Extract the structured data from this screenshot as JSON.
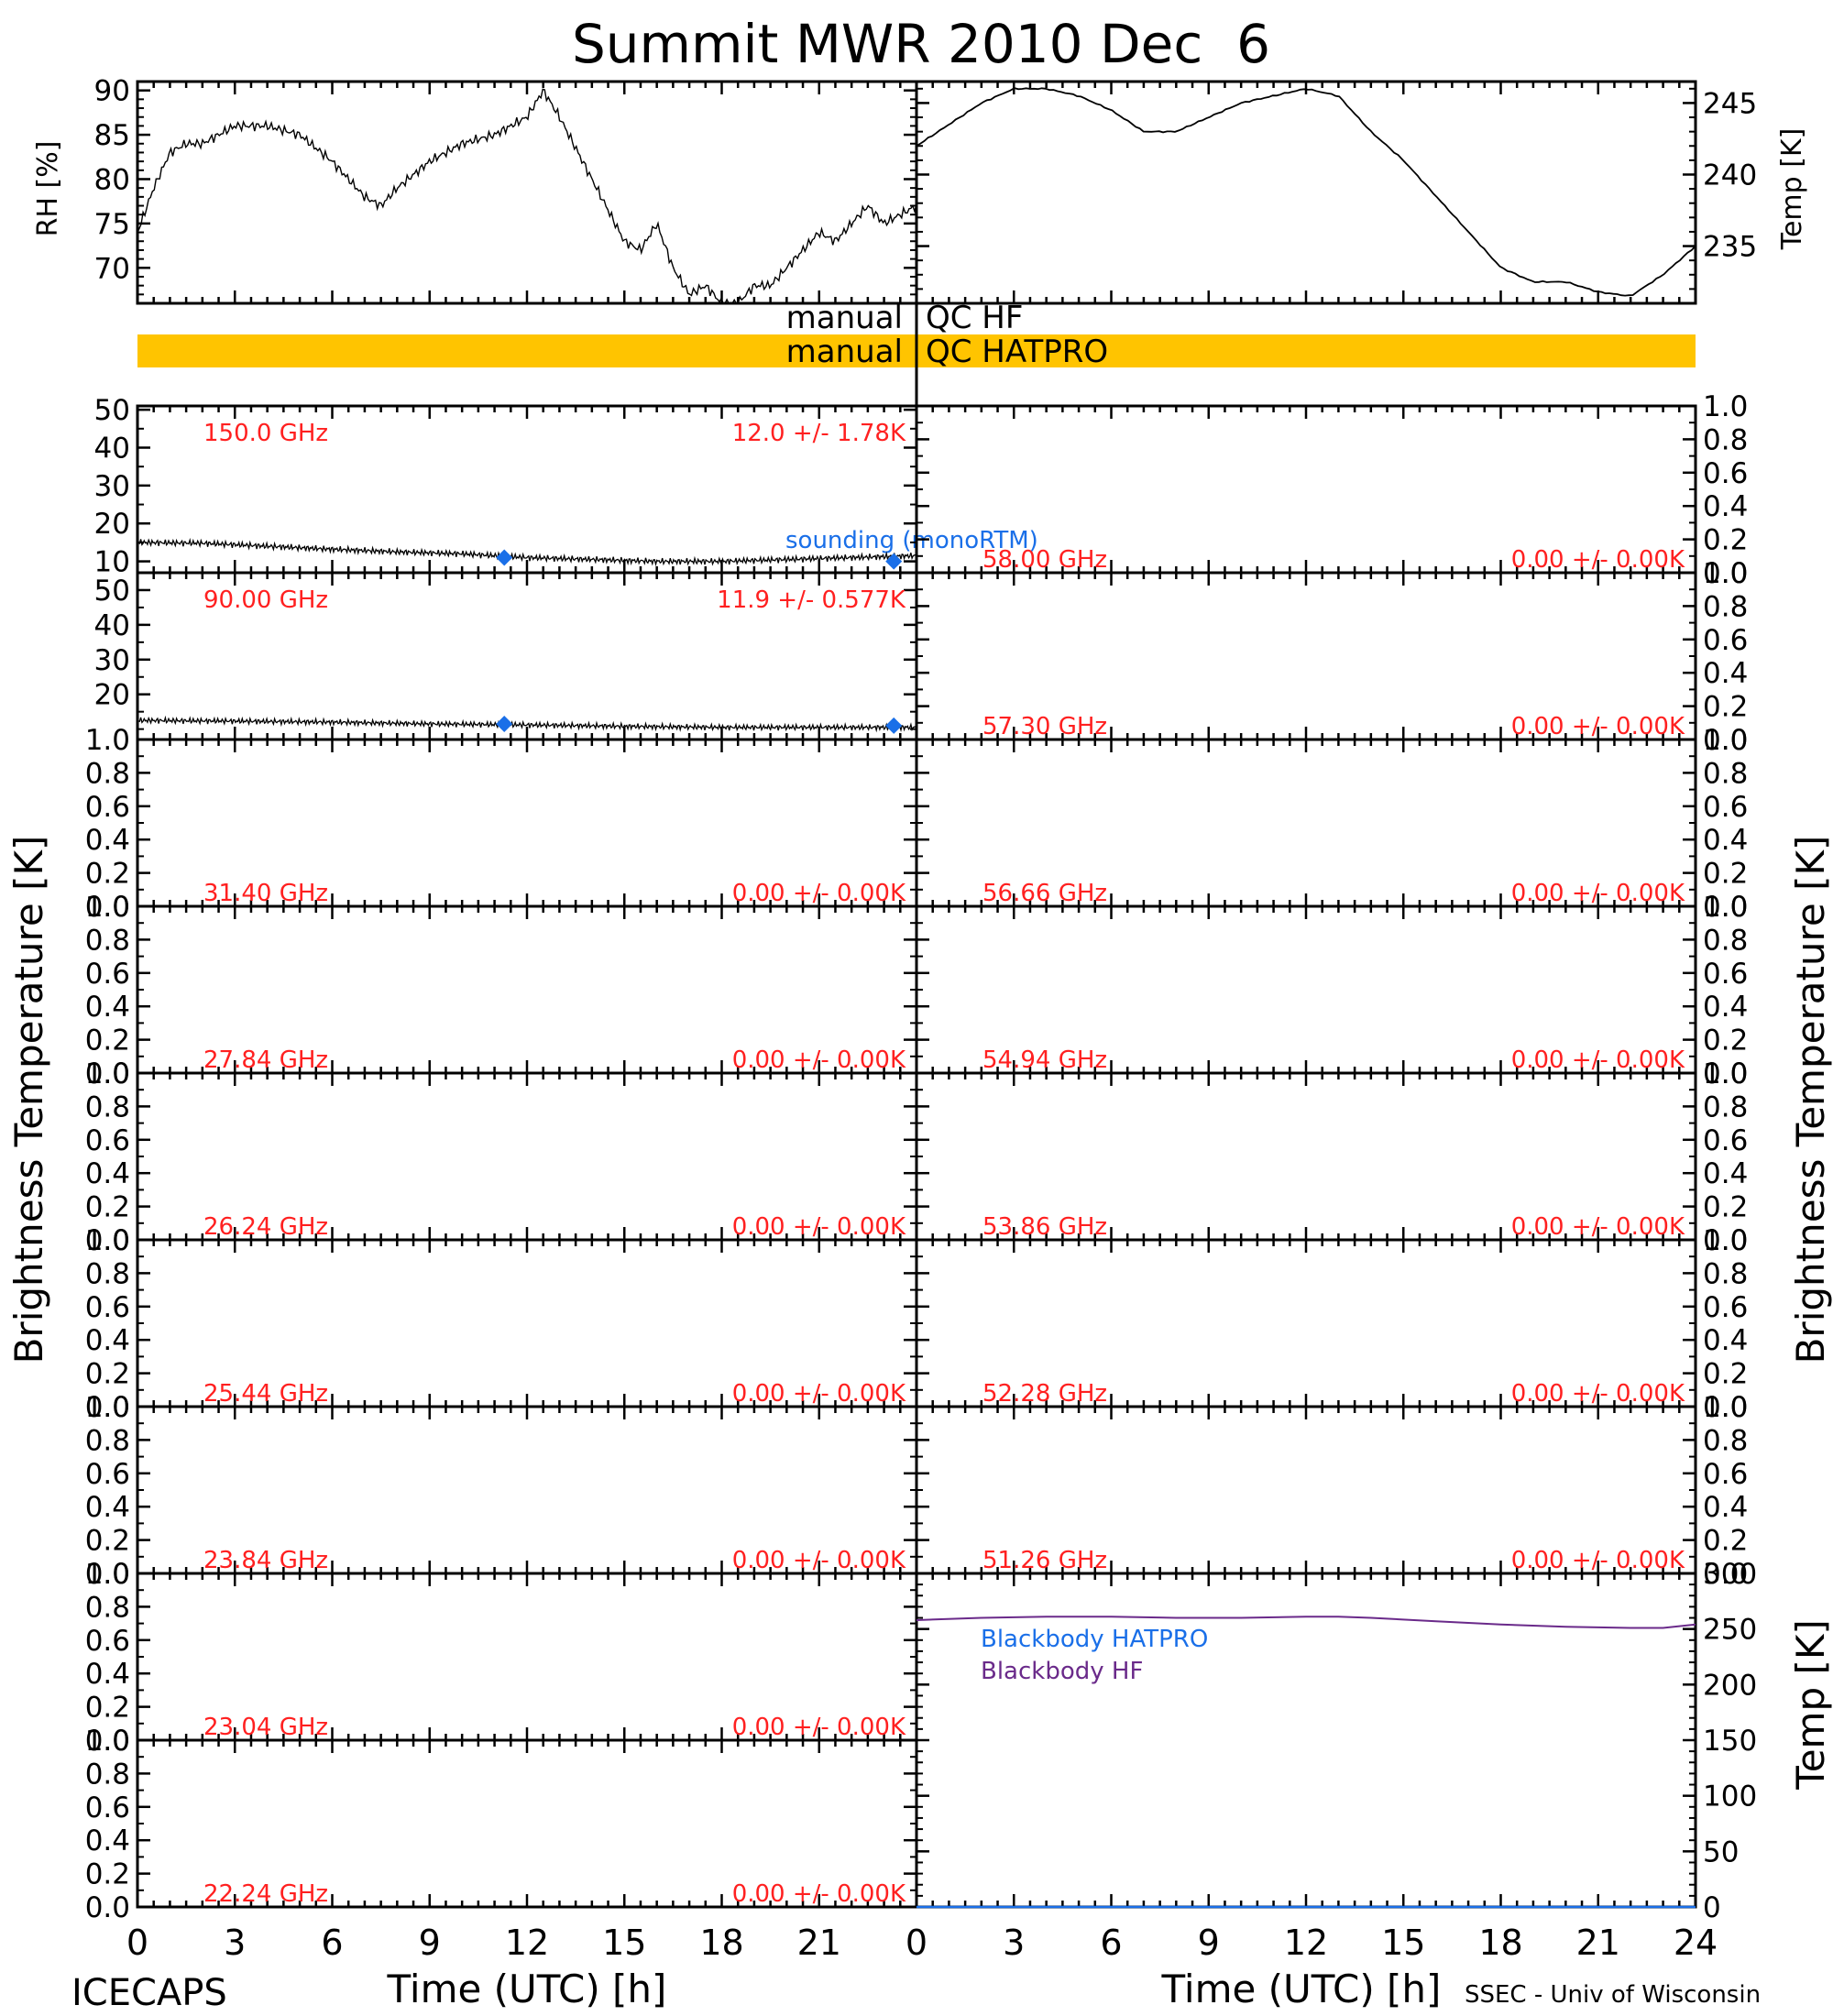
{
  "title": "Summit MWR 2010 Dec  6",
  "footer": {
    "left": "ICECAPS",
    "right": "SSEC - Univ of Wisconsin"
  },
  "xlabel": "Time (UTC) [h]",
  "xticks": [
    "0",
    "3",
    "6",
    "9",
    "12",
    "15",
    "18",
    "21",
    "24"
  ],
  "colors": {
    "qc_bar": "#ffc400",
    "channel_text": "#ff2020",
    "sounding": "#1a6fe8",
    "blackbody_hf": "#6a2a8a",
    "trace": "#000000"
  },
  "qc": {
    "hf": "manual QC HF",
    "hf_left": "manual",
    "hf_right": "QC HF",
    "hatpro_left": "manual",
    "hatpro_right": "QC HATPRO"
  },
  "labels": {
    "rh": "RH [%]",
    "temp_k": "Temp [K]",
    "tb_left": "Brightness Temperature [K]",
    "tb_right": "Brightness Temperature [K]",
    "temp_bb": "Temp [K]"
  },
  "annotations": {
    "sounding": "sounding (monoRTM)",
    "bb_hatpro": "Blackbody HATPRO",
    "bb_hf": "Blackbody HF"
  },
  "chart_data": [
    {
      "type": "line",
      "name": "rh",
      "ylabel": "RH [%]",
      "xlim": [
        0,
        24
      ],
      "ylim": [
        66,
        91
      ],
      "yticks": [
        70,
        75,
        80,
        85,
        90
      ],
      "x": [
        0,
        0.5,
        1,
        1.5,
        2,
        3,
        4,
        5,
        6,
        7,
        7.5,
        8,
        9,
        10,
        11,
        12,
        12.5,
        13,
        14,
        15,
        15.5,
        16,
        16.5,
        17,
        17.5,
        18,
        18.5,
        19,
        19.5,
        20,
        20.5,
        21,
        21.5,
        22,
        22.5,
        23,
        23.5,
        24
      ],
      "y": [
        74,
        79,
        83,
        84,
        84,
        86,
        86,
        85,
        82,
        78,
        77,
        79,
        82,
        84,
        85,
        87,
        90,
        87,
        80,
        73,
        72,
        75,
        70,
        67,
        68,
        66,
        66,
        68,
        68,
        70,
        72,
        74,
        73,
        75,
        77,
        75,
        76,
        77
      ]
    },
    {
      "type": "line",
      "name": "temp",
      "ylabel": "Temp [K]",
      "xlim": [
        0,
        24
      ],
      "ylim": [
        231,
        246.5
      ],
      "yticks": [
        235,
        240,
        245
      ],
      "x": [
        0,
        1,
        2,
        3,
        4,
        5,
        6,
        7,
        8,
        9,
        10,
        11,
        12,
        13,
        14,
        15,
        16,
        17,
        18,
        19,
        20,
        21,
        22,
        23,
        24
      ],
      "y": [
        242,
        243.5,
        245,
        246,
        246,
        245.5,
        244.5,
        243,
        243,
        244,
        245,
        245.5,
        246,
        245.5,
        243,
        241,
        238.5,
        236,
        233.5,
        232.5,
        232.5,
        231.8,
        231.5,
        233,
        235
      ]
    },
    {
      "type": "line",
      "name": "ch150",
      "freq": "150.0 GHz",
      "stat": "12.0 +/-  1.78K",
      "xlim": [
        0,
        24
      ],
      "ylim": [
        7,
        51
      ],
      "yticks": [
        10,
        20,
        30,
        40,
        50
      ],
      "x": [
        0,
        2,
        4,
        6,
        8,
        10,
        12,
        14,
        16,
        18,
        20,
        22,
        24
      ],
      "y": [
        15,
        14.8,
        14,
        13.2,
        12.5,
        12,
        11,
        10.5,
        10,
        10,
        10.5,
        11,
        11.5
      ],
      "sounding": {
        "x": [
          11.3,
          23.3
        ],
        "y": [
          11,
          10
        ]
      }
    },
    {
      "type": "line",
      "name": "ch90",
      "freq": "90.00 GHz",
      "stat": "11.9 +/- 0.577K",
      "xlim": [
        0,
        24
      ],
      "ylim": [
        7,
        55
      ],
      "yticks": [
        20,
        30,
        40,
        50
      ],
      "x": [
        0,
        3,
        6,
        9,
        12,
        15,
        18,
        21,
        24
      ],
      "y": [
        12.5,
        12.3,
        12,
        11.5,
        11.2,
        10.8,
        10.5,
        10.5,
        10.5
      ],
      "sounding": {
        "x": [
          11.3,
          23.3
        ],
        "y": [
          11.5,
          11
        ]
      }
    },
    {
      "type": "line",
      "name": "empty",
      "freq": "31.40 GHz",
      "stat": "0.00 +/-  0.00K",
      "ylim": [
        0,
        1
      ]
    },
    {
      "type": "line",
      "name": "empty",
      "freq": "27.84 GHz",
      "stat": "0.00 +/-  0.00K",
      "ylim": [
        0,
        1
      ]
    },
    {
      "type": "line",
      "name": "empty",
      "freq": "26.24 GHz",
      "stat": "0.00 +/-  0.00K",
      "ylim": [
        0,
        1
      ]
    },
    {
      "type": "line",
      "name": "empty",
      "freq": "25.44 GHz",
      "stat": "0.00 +/-  0.00K",
      "ylim": [
        0,
        1
      ]
    },
    {
      "type": "line",
      "name": "empty",
      "freq": "23.84 GHz",
      "stat": "0.00 +/-  0.00K",
      "ylim": [
        0,
        1
      ]
    },
    {
      "type": "line",
      "name": "empty",
      "freq": "23.04 GHz",
      "stat": "0.00 +/-  0.00K",
      "ylim": [
        0,
        1
      ]
    },
    {
      "type": "line",
      "name": "empty",
      "freq": "22.24 GHz",
      "stat": "0.00 +/-  0.00K",
      "ylim": [
        0,
        1
      ]
    },
    {
      "type": "line",
      "name": "empty",
      "freq": "58.00 GHz",
      "stat": "0.00 +/-  0.00K",
      "ylim": [
        0,
        1
      ]
    },
    {
      "type": "line",
      "name": "empty",
      "freq": "57.30 GHz",
      "stat": "0.00 +/-  0.00K",
      "ylim": [
        0,
        1
      ]
    },
    {
      "type": "line",
      "name": "empty",
      "freq": "56.66 GHz",
      "stat": "0.00 +/-  0.00K",
      "ylim": [
        0,
        1
      ]
    },
    {
      "type": "line",
      "name": "empty",
      "freq": "54.94 GHz",
      "stat": "0.00 +/-  0.00K",
      "ylim": [
        0,
        1
      ]
    },
    {
      "type": "line",
      "name": "empty",
      "freq": "53.86 GHz",
      "stat": "0.00 +/-  0.00K",
      "ylim": [
        0,
        1
      ]
    },
    {
      "type": "line",
      "name": "empty",
      "freq": "52.28 GHz",
      "stat": "0.00 +/-  0.00K",
      "ylim": [
        0,
        1
      ]
    },
    {
      "type": "line",
      "name": "empty",
      "freq": "51.26 GHz",
      "stat": "0.00 +/-  0.00K",
      "ylim": [
        0,
        1
      ]
    },
    {
      "type": "line",
      "name": "blackbody",
      "ylabel": "Temp [K]",
      "xlim": [
        0,
        24
      ],
      "ylim": [
        0,
        300
      ],
      "yticks": [
        0,
        50,
        100,
        150,
        200,
        250,
        300
      ],
      "series": [
        {
          "name": "Blackbody HF",
          "x": [
            0,
            2,
            4,
            6,
            8,
            10,
            12,
            13,
            14,
            16,
            18,
            20,
            22,
            23,
            24
          ],
          "y": [
            258,
            260,
            261,
            261,
            260,
            260,
            261,
            261,
            260,
            257,
            254,
            252,
            251,
            251,
            254
          ]
        },
        {
          "name": "Blackbody HATPRO",
          "x": [
            0,
            24
          ],
          "y": [
            0,
            0
          ]
        }
      ]
    }
  ],
  "yticks_unit": [
    "0.0",
    "0.2",
    "0.4",
    "0.6",
    "0.8",
    "1.0"
  ]
}
